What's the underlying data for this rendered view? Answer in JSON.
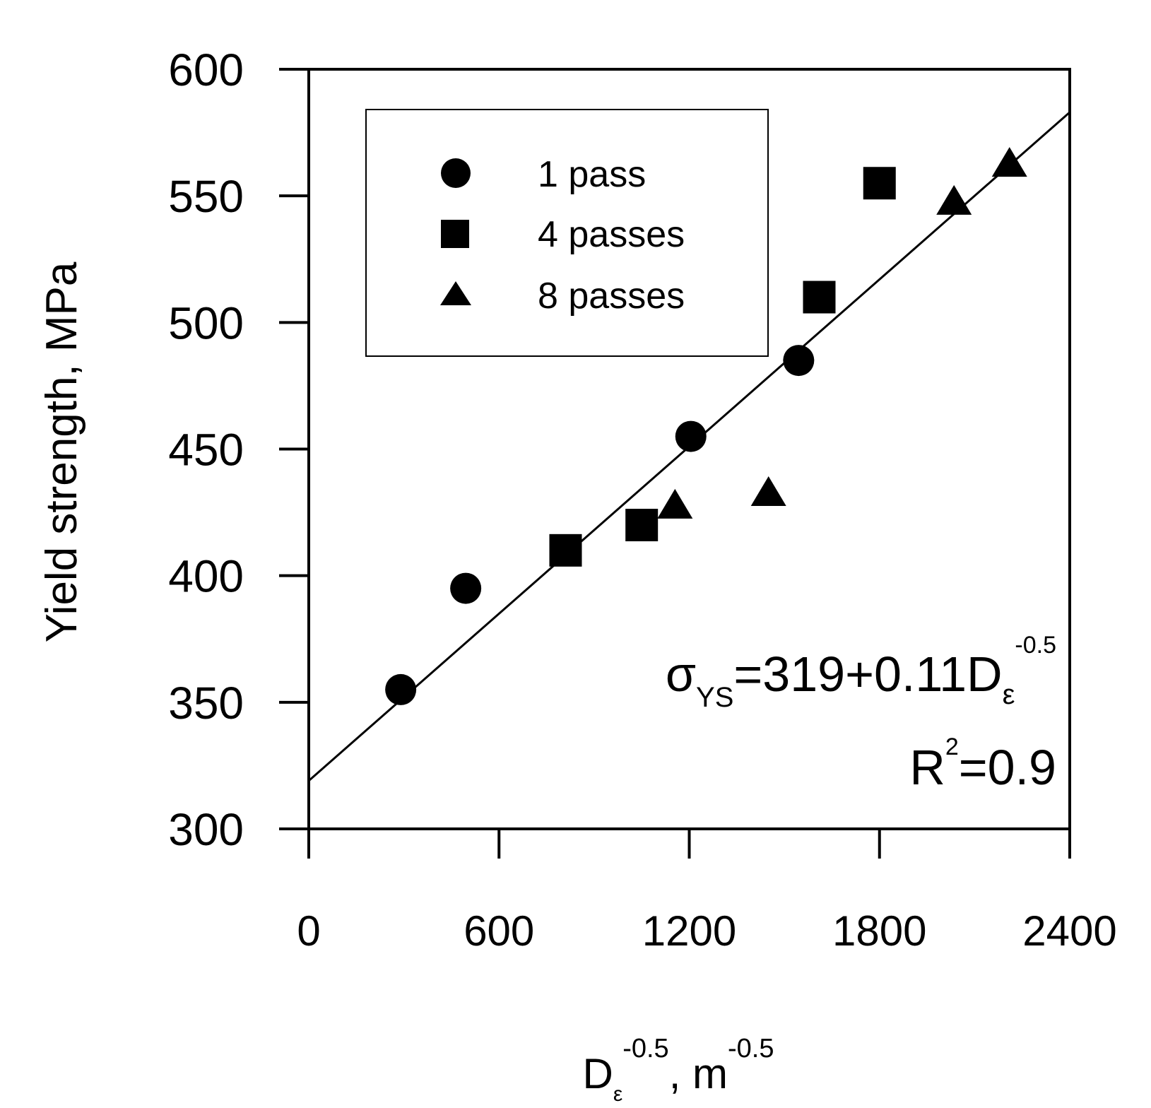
{
  "chart_data": {
    "type": "scatter",
    "ylabel": "Yield strength, MPa",
    "xlabel": {
      "base": "D",
      "subscript": "ε",
      "exponent": "-0.5",
      "separator": ",",
      "unit_base": "m",
      "unit_exponent": "-0.5"
    },
    "xlim": [
      0,
      2400
    ],
    "ylim": [
      300,
      600
    ],
    "x_ticks": [
      0,
      600,
      1200,
      1800,
      2400
    ],
    "y_ticks": [
      300,
      350,
      400,
      450,
      500,
      550,
      600
    ],
    "x_tick_labels": [
      "0",
      "600",
      "1200",
      "1800",
      "2400"
    ],
    "y_tick_labels": [
      "300",
      "350",
      "400",
      "450",
      "500",
      "550",
      "600"
    ],
    "legend_placement": "top-left",
    "series": [
      {
        "name": "1 pass",
        "marker": "circle",
        "points": [
          [
            290,
            355
          ],
          [
            495,
            395
          ],
          [
            1205,
            455
          ],
          [
            1545,
            485
          ]
        ]
      },
      {
        "name": "4 passes",
        "marker": "square",
        "points": [
          [
            810,
            410
          ],
          [
            1050,
            420
          ],
          [
            1610,
            510
          ],
          [
            1800,
            555
          ]
        ]
      },
      {
        "name": "8 passes",
        "marker": "triangle",
        "points": [
          [
            1155,
            427
          ],
          [
            1450,
            432
          ],
          [
            2035,
            547
          ],
          [
            2210,
            562
          ]
        ]
      }
    ],
    "fit_line": {
      "intercept": 319,
      "slope": 0.11,
      "x_range": [
        0,
        2400
      ]
    },
    "annotation": {
      "sigma": "σ",
      "sigma_sub": "YS",
      "equation": "=319+0.11D",
      "equation_sub": "ε",
      "equation_sup": "-0.5",
      "r2_base": "R",
      "r2_sup": "2",
      "r2_value": "=0.9"
    },
    "colors": {
      "marker": "#000000",
      "line": "#000000",
      "background": "#ffffff"
    }
  }
}
